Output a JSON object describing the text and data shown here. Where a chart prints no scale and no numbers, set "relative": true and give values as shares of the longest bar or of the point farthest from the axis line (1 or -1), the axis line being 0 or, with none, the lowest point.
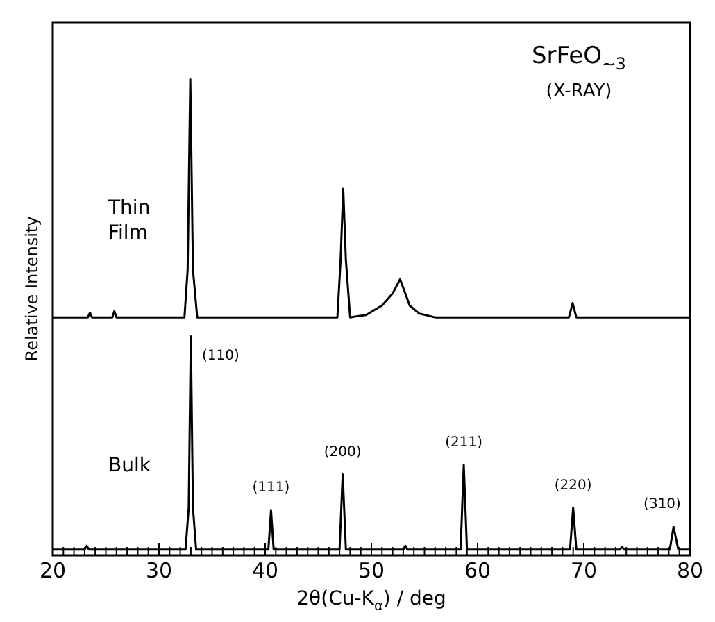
{
  "chart_data": {
    "type": "line",
    "relative": true,
    "xlabel": "2θ(Cu-K$_{α}$) / deg",
    "ylabel": "Relative Intensity",
    "xlim": [
      20,
      80
    ],
    "xticks": [
      20,
      {
        "value": 21,
        "label": null
      },
      {
        "value": 22,
        "label": null
      },
      {
        "value": 23,
        "label": null
      },
      {
        "value": 24,
        "label": null
      },
      {
        "value": 25,
        "label": null
      },
      {
        "value": 26,
        "label": null
      },
      {
        "value": 27,
        "label": null
      },
      {
        "value": 28,
        "label": null
      },
      {
        "value": 29,
        "label": null
      },
      30,
      {
        "value": 31,
        "label": null
      },
      {
        "value": 32,
        "label": null
      },
      {
        "value": 33,
        "label": null
      },
      {
        "value": 34,
        "label": null
      },
      {
        "value": 35,
        "label": null
      },
      {
        "value": 36,
        "label": null
      },
      {
        "value": 37,
        "label": null
      },
      {
        "value": 38,
        "label": null
      },
      {
        "value": 39,
        "label": null
      },
      40,
      {
        "value": 41,
        "label": null
      },
      {
        "value": 42,
        "label": null
      },
      {
        "value": 43,
        "label": null
      },
      {
        "value": 44,
        "label": null
      },
      {
        "value": 45,
        "label": null
      },
      {
        "value": 46,
        "label": null
      },
      {
        "value": 47,
        "label": null
      },
      {
        "value": 48,
        "label": null
      },
      {
        "value": 49,
        "label": null
      },
      50,
      {
        "value": 51,
        "label": null
      },
      {
        "value": 52,
        "label": null
      },
      {
        "value": 53,
        "label": null
      },
      {
        "value": 54,
        "label": null
      },
      {
        "value": 55,
        "label": null
      },
      {
        "value": 56,
        "label": null
      },
      {
        "value": 57,
        "label": null
      },
      {
        "value": 58,
        "label": null
      },
      {
        "value": 59,
        "label": null
      },
      60,
      {
        "value": 61,
        "label": null
      },
      {
        "value": 62,
        "label": null
      },
      {
        "value": 63,
        "label": null
      },
      {
        "value": 64,
        "label": null
      },
      {
        "value": 65,
        "label": null
      },
      {
        "value": 66,
        "label": null
      },
      {
        "value": 67,
        "label": null
      },
      {
        "value": 68,
        "label": null
      },
      {
        "value": 69,
        "label": null
      },
      70,
      {
        "value": 71,
        "label": null
      },
      {
        "value": 72,
        "label": null
      },
      {
        "value": 73,
        "label": null
      },
      {
        "value": 74,
        "label": null
      },
      {
        "value": 75,
        "label": null
      },
      {
        "value": 76,
        "label": null
      },
      {
        "value": 77,
        "label": null
      },
      {
        "value": 78,
        "label": null
      },
      {
        "value": 79,
        "label": null
      },
      80
    ],
    "grid": false,
    "legend": false,
    "marker": "none",
    "line_style": "solid",
    "series": [
      {
        "name": "Thin Film",
        "color": "#000000",
        "x": [
          20,
          23.3,
          23.5,
          23.7,
          25.6,
          25.8,
          26,
          32.4,
          32.7,
          32.95,
          33.2,
          33.6,
          46.8,
          47.1,
          47.35,
          47.6,
          48,
          49.5,
          51,
          52,
          52.7,
          53.2,
          53.6,
          54.5,
          56,
          68.6,
          68.95,
          69.3,
          80
        ],
        "values": [
          0.5,
          0.5,
          0.51,
          0.5,
          0.5,
          0.513,
          0.5,
          0.5,
          0.6,
          1,
          0.6,
          0.5,
          0.5,
          0.62,
          0.77,
          0.62,
          0.5,
          0.505,
          0.525,
          0.55,
          0.58,
          0.55,
          0.525,
          0.508,
          0.5,
          0.5,
          0.53,
          0.5,
          0.5
        ]
      },
      {
        "name": "Bulk",
        "color": "#000000",
        "x": [
          20,
          23,
          23.2,
          23.4,
          32.5,
          32.8,
          33,
          33.2,
          33.5,
          40.3,
          40.55,
          40.8,
          47,
          47.3,
          47.6,
          53,
          53.2,
          53.4,
          58.4,
          58.7,
          59,
          68.7,
          69,
          69.3,
          73.4,
          73.6,
          73.8,
          78.1,
          78.45,
          78.9,
          80
        ],
        "values": [
          0.012,
          0.012,
          0.02,
          0.012,
          0.012,
          0.1,
          0.46,
          0.1,
          0.012,
          0.012,
          0.095,
          0.012,
          0.012,
          0.17,
          0.012,
          0.012,
          0.02,
          0.012,
          0.012,
          0.19,
          0.012,
          0.012,
          0.1,
          0.012,
          0.012,
          0.018,
          0.012,
          0.012,
          0.06,
          0.012,
          0.012
        ]
      }
    ],
    "annotations": [
      "SrFeO$_{~3}$",
      "(X-RAY)",
      {
        "text": "(110)",
        "x": 33,
        "y": 0.46
      },
      {
        "text": "(111)",
        "x": 40.55,
        "y": 0.095
      },
      {
        "text": "(200)",
        "x": 47.3,
        "y": 0.17
      },
      {
        "text": "(211)",
        "x": 58.7,
        "y": 0.19
      },
      {
        "text": "(220)",
        "x": 69,
        "y": 0.1
      },
      {
        "text": "(310)",
        "x": 78.45,
        "y": 0.06
      }
    ]
  }
}
